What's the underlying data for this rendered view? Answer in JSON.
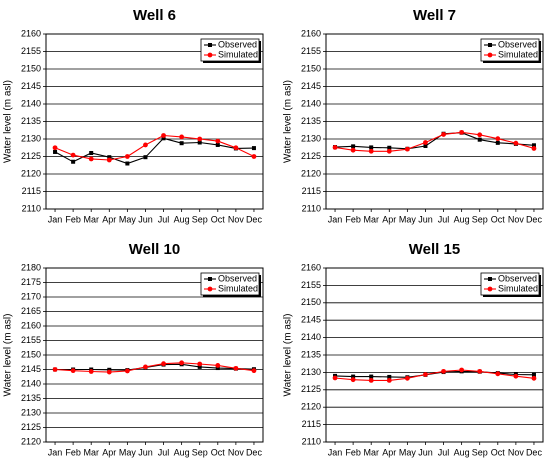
{
  "chart_data": [
    {
      "type": "line",
      "title": "Well 6",
      "ylabel": "Water level (m asl)",
      "xlabel": "",
      "categories": [
        "Jan",
        "Feb",
        "Mar",
        "Apr",
        "May",
        "Jun",
        "Jul",
        "Aug",
        "Sep",
        "Oct",
        "Nov",
        "Dec"
      ],
      "ylim": [
        2110,
        2160
      ],
      "yticks": [
        2110,
        2115,
        2120,
        2125,
        2130,
        2135,
        2140,
        2145,
        2150,
        2155,
        2160
      ],
      "grid": true,
      "legend": "top-right",
      "series": [
        {
          "name": "Observed",
          "color": "#000000",
          "marker": "square",
          "values": [
            2126.3,
            2123.5,
            2126.0,
            2124.8,
            2123.0,
            2124.8,
            2130.2,
            2128.8,
            2129.0,
            2128.3,
            2127.3,
            2127.4
          ]
        },
        {
          "name": "Simulated",
          "color": "#ff0000",
          "marker": "circle",
          "values": [
            2127.5,
            2125.4,
            2124.3,
            2124.0,
            2125.0,
            2128.3,
            2131.0,
            2130.6,
            2130.0,
            2129.4,
            2127.5,
            2125.0
          ]
        }
      ]
    },
    {
      "type": "line",
      "title": "Well 7",
      "ylabel": "Water level (m asl)",
      "xlabel": "",
      "categories": [
        "Jan",
        "Feb",
        "Mar",
        "Apr",
        "May",
        "Jun",
        "Jul",
        "Aug",
        "Sep",
        "Oct",
        "Nov",
        "Dec"
      ],
      "ylim": [
        2110,
        2160
      ],
      "yticks": [
        2110,
        2115,
        2120,
        2125,
        2130,
        2135,
        2140,
        2145,
        2150,
        2155,
        2160
      ],
      "grid": true,
      "legend": "top-right",
      "series": [
        {
          "name": "Observed",
          "color": "#000000",
          "marker": "square",
          "values": [
            2127.7,
            2127.9,
            2127.6,
            2127.5,
            2127.2,
            2128.0,
            2131.5,
            2131.8,
            2129.8,
            2128.9,
            2128.6,
            2128.2
          ]
        },
        {
          "name": "Simulated",
          "color": "#ff0000",
          "marker": "circle",
          "values": [
            2127.6,
            2126.8,
            2126.5,
            2126.5,
            2127.1,
            2129.0,
            2131.3,
            2131.9,
            2131.2,
            2130.1,
            2128.8,
            2127.3
          ]
        }
      ]
    },
    {
      "type": "line",
      "title": "Well 10",
      "ylabel": "Water level (m asl)",
      "xlabel": "",
      "categories": [
        "Jan",
        "Feb",
        "Mar",
        "Apr",
        "May",
        "Jun",
        "Jul",
        "Aug",
        "Sep",
        "Oct",
        "Nov",
        "Dec"
      ],
      "ylim": [
        2120,
        2180
      ],
      "yticks": [
        2120,
        2125,
        2130,
        2135,
        2140,
        2145,
        2150,
        2155,
        2160,
        2165,
        2170,
        2175,
        2180
      ],
      "grid": true,
      "legend": "top-right",
      "series": [
        {
          "name": "Observed",
          "color": "#000000",
          "marker": "square",
          "values": [
            2145.0,
            2145.0,
            2145.0,
            2144.9,
            2144.8,
            2145.7,
            2146.7,
            2146.8,
            2145.9,
            2145.5,
            2145.3,
            2145.1
          ]
        },
        {
          "name": "Simulated",
          "color": "#ff0000",
          "marker": "circle",
          "values": [
            2145.0,
            2144.6,
            2144.3,
            2144.1,
            2144.5,
            2145.9,
            2147.0,
            2147.3,
            2146.9,
            2146.4,
            2145.4,
            2144.6
          ]
        }
      ]
    },
    {
      "type": "line",
      "title": "Well 15",
      "ylabel": "Water level (m asl)",
      "xlabel": "",
      "categories": [
        "Jan",
        "Feb",
        "Mar",
        "Apr",
        "May",
        "Jun",
        "Jul",
        "Aug",
        "Sep",
        "Oct",
        "Nov",
        "Dec"
      ],
      "ylim": [
        2110,
        2160
      ],
      "yticks": [
        2110,
        2115,
        2120,
        2125,
        2130,
        2135,
        2140,
        2145,
        2150,
        2155,
        2160
      ],
      "grid": true,
      "legend": "top-right",
      "series": [
        {
          "name": "Observed",
          "color": "#000000",
          "marker": "square",
          "values": [
            2129.0,
            2128.8,
            2128.8,
            2128.7,
            2128.6,
            2129.3,
            2130.1,
            2130.3,
            2130.2,
            2129.8,
            2129.4,
            2129.3
          ]
        },
        {
          "name": "Simulated",
          "color": "#ff0000",
          "marker": "circle",
          "values": [
            2128.4,
            2127.9,
            2127.7,
            2127.7,
            2128.3,
            2129.4,
            2130.3,
            2130.7,
            2130.3,
            2129.6,
            2128.9,
            2128.3
          ]
        }
      ]
    }
  ]
}
